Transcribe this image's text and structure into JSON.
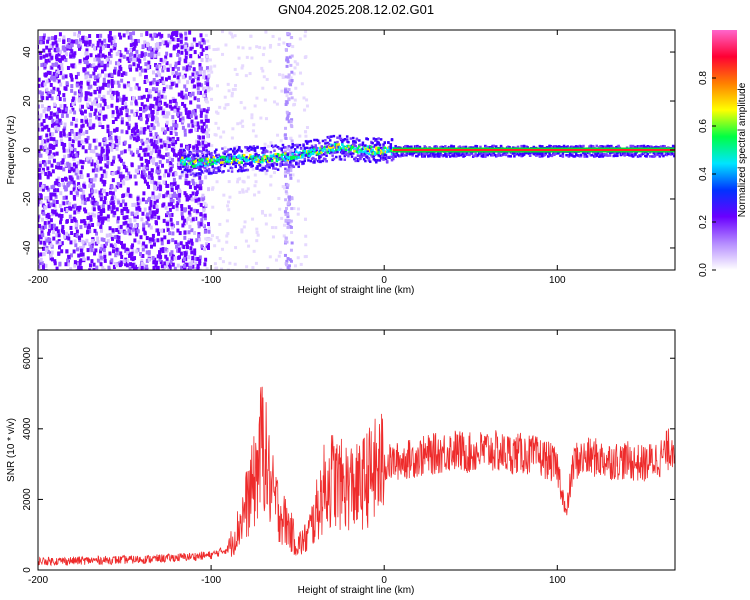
{
  "title": "GN04.2025.208.12.02.G01",
  "chart_data": [
    {
      "type": "heatmap",
      "xlabel": "Height of straight line (km)",
      "ylabel": "Frequency (Hz)",
      "xlim": [
        -200,
        168
      ],
      "ylim": [
        -49,
        49
      ],
      "xticks": [
        -200,
        -100,
        0,
        100
      ],
      "yticks": [
        -40,
        -20,
        0,
        20,
        40
      ],
      "grid": false,
      "ridge": {
        "description_points_x": [
          -118,
          -110,
          -100,
          -90,
          -80,
          -70,
          -60,
          -50,
          -40,
          -30,
          -20,
          -10,
          0,
          10,
          50,
          100,
          168
        ],
        "description_points_y": [
          -4,
          -5,
          -4,
          -3.5,
          -3,
          -3,
          -2.5,
          -1.5,
          0,
          1.5,
          1,
          0.5,
          0,
          0,
          0,
          0,
          0
        ]
      },
      "noise_region_x": [
        -200,
        -100
      ],
      "spike_x": -56,
      "colorbar": {
        "label": "Normalized spectral amplitude",
        "range": [
          0,
          1
        ],
        "ticks": [
          0.0,
          0.2,
          0.4,
          0.6,
          0.8
        ],
        "tick_labels": [
          "0.0",
          "0.2",
          "0.4",
          "0.6",
          "0.8"
        ],
        "colors": [
          "#ffffff",
          "#b58cff",
          "#6a00ff",
          "#0033ff",
          "#00e5ff",
          "#00ff44",
          "#ffff00",
          "#ff7f00",
          "#ff0033",
          "#ff66cc"
        ]
      }
    },
    {
      "type": "line",
      "xlabel": "Height of straight line (km)",
      "ylabel": "SNR (10 * v/v)",
      "xlim": [
        -200,
        168
      ],
      "ylim": [
        0,
        6800
      ],
      "xticks": [
        -200,
        -100,
        0,
        100
      ],
      "yticks": [
        0,
        2000,
        4000,
        6000
      ],
      "grid": false,
      "series": [
        {
          "color": "#ee2b2b",
          "x": [
            -200,
            -180,
            -160,
            -140,
            -120,
            -100,
            -90,
            -85,
            -80,
            -75,
            -72,
            -70,
            -68,
            -65,
            -60,
            -55,
            -50,
            -45,
            -40,
            -35,
            -30,
            -25,
            -20,
            -15,
            -10,
            -5,
            0,
            10,
            20,
            30,
            40,
            50,
            60,
            70,
            80,
            90,
            95,
            100,
            103,
            105,
            108,
            110,
            120,
            130,
            140,
            150,
            160,
            168
          ],
          "y": [
            250,
            260,
            280,
            300,
            350,
            420,
            600,
            1100,
            1800,
            2500,
            3200,
            3800,
            3000,
            2200,
            1600,
            1200,
            700,
            900,
            1500,
            2300,
            2600,
            2400,
            2400,
            2300,
            2600,
            2800,
            3000,
            3100,
            3200,
            3300,
            3400,
            3300,
            3400,
            3300,
            3300,
            3200,
            3100,
            2900,
            2200,
            1500,
            2600,
            3100,
            3200,
            3100,
            3100,
            3000,
            3200,
            3600
          ]
        }
      ]
    }
  ]
}
